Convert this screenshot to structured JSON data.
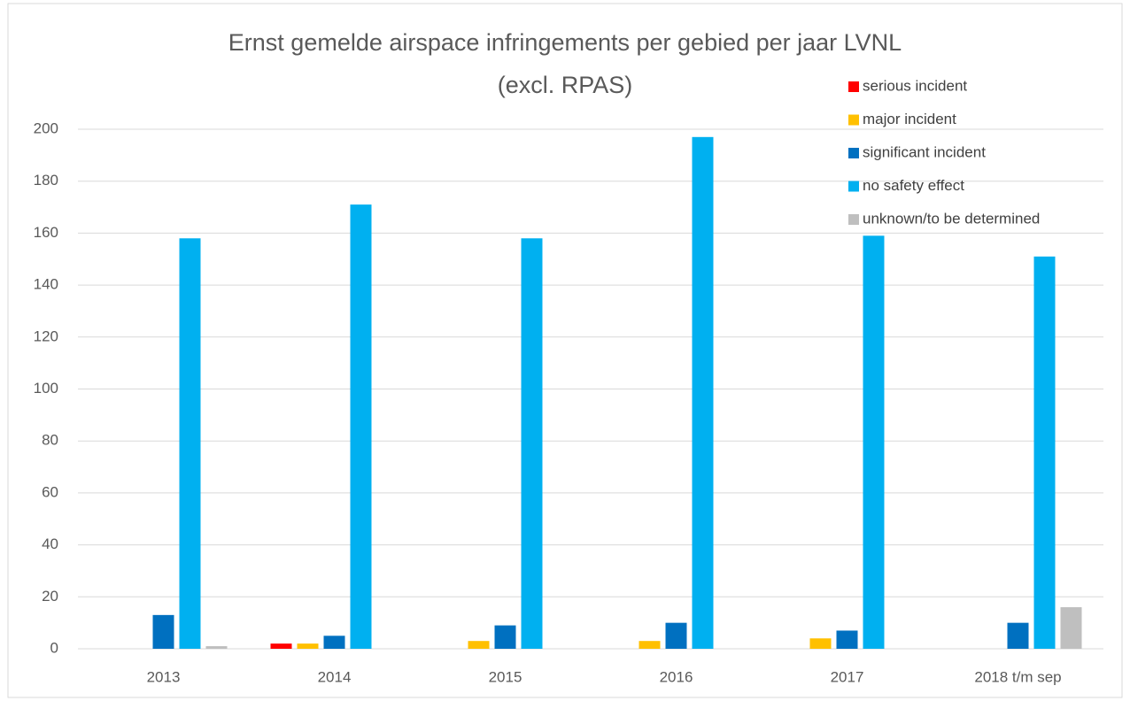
{
  "chart_data": {
    "type": "bar",
    "title": "Ernst gemelde airspace infringements per gebied per jaar LVNL",
    "subtitle": "(excl. RPAS)",
    "categories": [
      "2013",
      "2014",
      "2015",
      "2016",
      "2017",
      "2018 t/m sep"
    ],
    "series": [
      {
        "name": "serious incident",
        "color": "#ff0000",
        "values": [
          0,
          2,
          0,
          0,
          0,
          0
        ]
      },
      {
        "name": "major incident",
        "color": "#ffc000",
        "values": [
          0,
          2,
          3,
          3,
          4,
          0
        ]
      },
      {
        "name": "significant incident",
        "color": "#0070c0",
        "values": [
          13,
          5,
          9,
          10,
          7,
          10
        ]
      },
      {
        "name": "no safety effect",
        "color": "#00b0f0",
        "values": [
          158,
          171,
          158,
          197,
          159,
          151
        ]
      },
      {
        "name": "unknown/to be determined",
        "color": "#bfbfbf",
        "values": [
          1,
          0,
          0,
          0,
          0,
          16
        ]
      }
    ],
    "ylim": [
      0,
      200
    ],
    "yticks": [
      0,
      20,
      40,
      60,
      80,
      100,
      120,
      140,
      160,
      180,
      200
    ],
    "grid": true,
    "legend": "top-right"
  }
}
